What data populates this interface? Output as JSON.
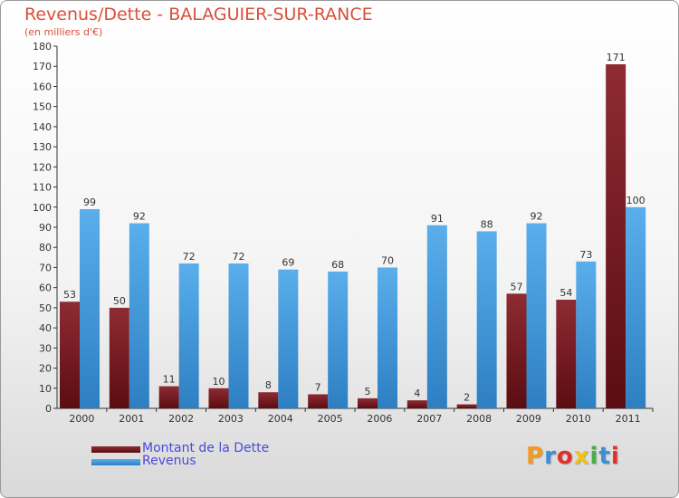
{
  "header": {
    "title": "Revenus/Dette - BALAGUIER-SUR-RANCE",
    "subtitle": "(en milliers d'€)"
  },
  "colors": {
    "title": "#d94f3a",
    "debt_light": "#8e2b32",
    "debt_dark": "#5a0d12",
    "revenue_light": "#5aaeeb",
    "revenue_dark": "#2d7fc2",
    "legend_text": "#4a4adb"
  },
  "chart_data": {
    "type": "bar",
    "categories": [
      "2000",
      "2001",
      "2002",
      "2003",
      "2004",
      "2005",
      "2006",
      "2007",
      "2008",
      "2009",
      "2010",
      "2011"
    ],
    "series": [
      {
        "name": "Montant de la Dette",
        "values": [
          53,
          50,
          11,
          10,
          8,
          7,
          5,
          4,
          2,
          57,
          54,
          171
        ]
      },
      {
        "name": "Revenus",
        "values": [
          99,
          92,
          72,
          72,
          69,
          68,
          70,
          91,
          88,
          92,
          73,
          100
        ]
      }
    ],
    "ylim": [
      0,
      180
    ],
    "yticks": [
      0,
      10,
      20,
      30,
      40,
      50,
      60,
      70,
      80,
      90,
      100,
      110,
      120,
      130,
      140,
      150,
      160,
      170,
      180
    ],
    "grid": false,
    "legend_position": "bottom-left"
  },
  "legend": {
    "items": [
      {
        "label": "Montant de la Dette",
        "icon": "dark-red-swatch"
      },
      {
        "label": "Revenus",
        "icon": "blue-swatch"
      }
    ]
  },
  "logo": {
    "letters": [
      "P",
      "r",
      "o",
      "x",
      "i",
      "t",
      "i"
    ],
    "colors": [
      "#f29a1f",
      "#3b8ed8",
      "#e2312a",
      "#f2c21a",
      "#45b045",
      "#3b8ed8",
      "#e2312a"
    ]
  }
}
